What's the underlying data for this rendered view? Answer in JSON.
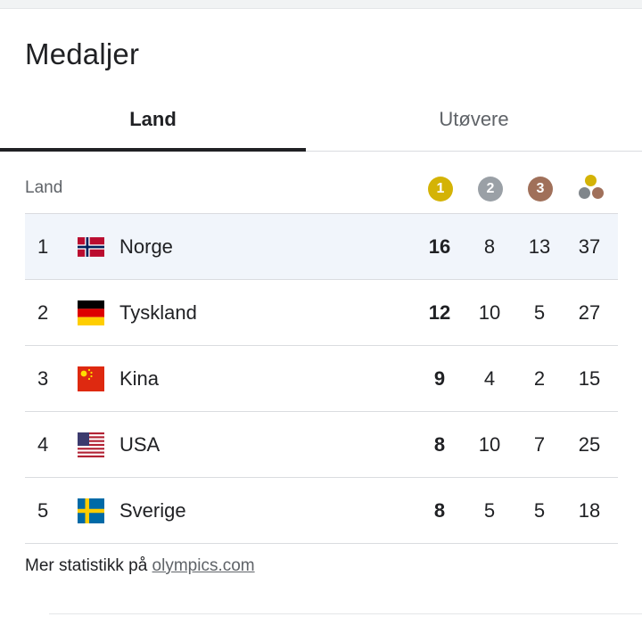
{
  "title": "Medaljer",
  "tabs": {
    "land": "Land",
    "utovere": "Utøvere"
  },
  "table": {
    "header": {
      "country_label": "Land",
      "gold": "1",
      "silver": "2",
      "bronze": "3"
    },
    "colors": {
      "gold": "#d4b306",
      "silver": "#9aa0a6",
      "bronze": "#a0705a",
      "total_gold": "#d4b306",
      "total_gray": "#80868b",
      "total_bronze": "#a0705a"
    },
    "rows": [
      {
        "rank": "1",
        "country": "Norge",
        "flag": "norway-flag-icon",
        "gold": "16",
        "silver": "8",
        "bronze": "13",
        "total": "37"
      },
      {
        "rank": "2",
        "country": "Tyskland",
        "flag": "germany-flag-icon",
        "gold": "12",
        "silver": "10",
        "bronze": "5",
        "total": "27"
      },
      {
        "rank": "3",
        "country": "Kina",
        "flag": "china-flag-icon",
        "gold": "9",
        "silver": "4",
        "bronze": "2",
        "total": "15"
      },
      {
        "rank": "4",
        "country": "USA",
        "flag": "usa-flag-icon",
        "gold": "8",
        "silver": "10",
        "bronze": "7",
        "total": "25"
      },
      {
        "rank": "5",
        "country": "Sverige",
        "flag": "sweden-flag-icon",
        "gold": "8",
        "silver": "5",
        "bronze": "5",
        "total": "18"
      }
    ]
  },
  "footer": {
    "text": "Mer statistikk på ",
    "link": "olympics.com"
  }
}
